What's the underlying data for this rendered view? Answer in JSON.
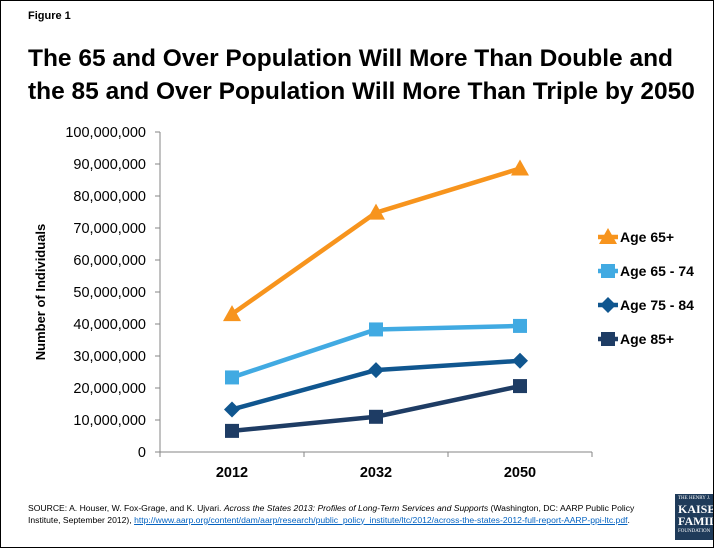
{
  "figure_label": "Figure 1",
  "chart_data": {
    "type": "line",
    "title": "The 65 and Over Population Will More Than Double and the 85 and Over Population Will More Than Triple by 2050",
    "xlabel": "",
    "ylabel": "Number of Individuals",
    "categories": [
      "2012",
      "2032",
      "2050"
    ],
    "ylim": [
      0,
      100000000
    ],
    "yticks": [
      "0",
      "10,000,000",
      "20,000,000",
      "30,000,000",
      "40,000,000",
      "50,000,000",
      "60,000,000",
      "70,000,000",
      "80,000,000",
      "90,000,000",
      "100,000,000"
    ],
    "grid": false,
    "legend_position": "right",
    "series": [
      {
        "name": "Age 65+",
        "color": "#f7941d",
        "marker": "triangle",
        "values": [
          43100000,
          74800000,
          88600000
        ]
      },
      {
        "name": "Age 65 - 74",
        "color": "#41aae2",
        "marker": "square",
        "values": [
          23300000,
          38300000,
          39400000
        ]
      },
      {
        "name": "Age 75 - 84",
        "color": "#10568f",
        "marker": "diamond",
        "values": [
          13300000,
          25600000,
          28500000
        ]
      },
      {
        "name": "Age 85+",
        "color": "#1e3c64",
        "marker": "square",
        "values": [
          6600000,
          11000000,
          20600000
        ]
      }
    ]
  },
  "source": {
    "prefix": "SOURCE: A. Houser, W. Fox-Grage, and K. Ujvari. ",
    "italic": "Across the States 2013: Profiles of Long-Term Services and Supports",
    "middle": " (Washington, DC: AARP Public Policy Institute, September 2012), ",
    "link": "http://www.aarp.org/content/dam/aarp/research/public_policy_institute/ltc/2012/across-the-states-2012-full-report-AARP-ppi-ltc.pdf",
    "suffix": "."
  },
  "logo": {
    "line1": "THE HENRY J.",
    "line2": "KAISER",
    "line3": "FAMILY",
    "line4": "FOUNDATION"
  }
}
